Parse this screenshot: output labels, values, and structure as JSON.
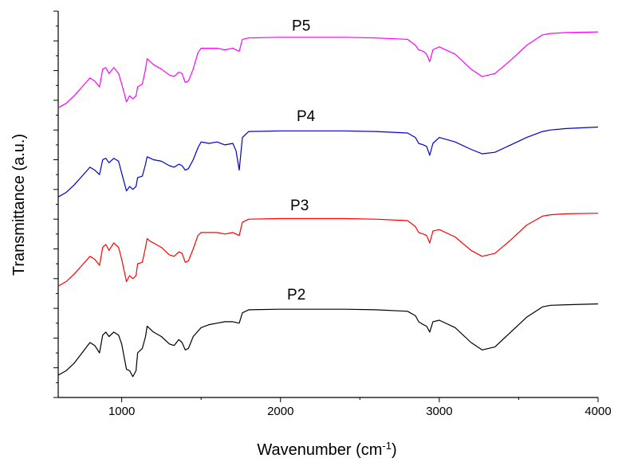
{
  "chart_data": {
    "type": "line",
    "title": "",
    "xlabel": "Wavenumber (cm",
    "xlabel_sup": "-1",
    "xlabel_close": ")",
    "ylabel": "Transmittance (a.u.)",
    "xlim": [
      600,
      4000
    ],
    "ylim": [
      0,
      13
    ],
    "x_ticks": [
      1000,
      2000,
      3000,
      4000
    ],
    "x_tick_labels": [
      "1000",
      "2000",
      "3000",
      "4000"
    ],
    "y_tick_labels_shown": false,
    "grid": false,
    "legend": "none",
    "series": [
      {
        "name": "P2",
        "color": "#000000",
        "x": [
          600,
          650,
          700,
          750,
          800,
          830,
          860,
          880,
          900,
          920,
          950,
          980,
          1000,
          1030,
          1050,
          1070,
          1090,
          1100,
          1130,
          1150,
          1160,
          1180,
          1200,
          1250,
          1300,
          1330,
          1360,
          1380,
          1400,
          1420,
          1450,
          1500,
          1550,
          1600,
          1650,
          1700,
          1740,
          1760,
          1800,
          2000,
          2200,
          2400,
          2600,
          2800,
          2850,
          2870,
          2900,
          2920,
          2940,
          2960,
          3000,
          3100,
          3200,
          3270,
          3350,
          3450,
          3550,
          3650,
          3700,
          3800,
          4000
        ],
        "y": [
          0.75,
          0.9,
          1.15,
          1.5,
          1.85,
          1.75,
          1.5,
          2.1,
          2.2,
          2.05,
          2.2,
          2.1,
          1.8,
          0.95,
          0.9,
          0.7,
          0.9,
          1.5,
          1.65,
          2.05,
          2.4,
          2.3,
          2.2,
          2.05,
          1.8,
          1.75,
          1.95,
          1.85,
          1.6,
          1.65,
          2.05,
          2.35,
          2.45,
          2.5,
          2.55,
          2.55,
          2.5,
          2.85,
          2.95,
          2.97,
          2.97,
          2.97,
          2.95,
          2.9,
          2.75,
          2.55,
          2.45,
          2.4,
          2.2,
          2.55,
          2.6,
          2.35,
          1.85,
          1.6,
          1.7,
          2.2,
          2.7,
          3.05,
          3.1,
          3.12,
          3.15
        ]
      },
      {
        "name": "P3",
        "color": "#ff0000",
        "x": [
          600,
          650,
          700,
          750,
          800,
          830,
          860,
          880,
          900,
          920,
          950,
          980,
          1000,
          1030,
          1050,
          1070,
          1090,
          1100,
          1130,
          1150,
          1160,
          1180,
          1200,
          1250,
          1300,
          1330,
          1360,
          1380,
          1400,
          1420,
          1450,
          1480,
          1500,
          1550,
          1600,
          1650,
          1700,
          1740,
          1760,
          1800,
          2000,
          2200,
          2400,
          2600,
          2800,
          2850,
          2870,
          2900,
          2920,
          2940,
          2960,
          3000,
          3100,
          3200,
          3270,
          3350,
          3450,
          3550,
          3650,
          3700,
          3800,
          4000
        ],
        "y": [
          3.75,
          3.9,
          4.15,
          4.45,
          4.75,
          4.65,
          4.45,
          5.05,
          5.15,
          4.95,
          5.2,
          5.05,
          4.65,
          3.9,
          4.1,
          4.0,
          4.1,
          4.5,
          4.55,
          5.05,
          5.35,
          5.25,
          5.2,
          5.05,
          4.8,
          4.75,
          4.9,
          4.85,
          4.55,
          4.6,
          5.0,
          5.45,
          5.55,
          5.55,
          5.55,
          5.5,
          5.55,
          5.45,
          5.9,
          6.0,
          6.02,
          6.02,
          6.02,
          6.0,
          5.95,
          5.75,
          5.55,
          5.5,
          5.45,
          5.2,
          5.6,
          5.65,
          5.4,
          4.95,
          4.75,
          4.85,
          5.3,
          5.8,
          6.1,
          6.15,
          6.18,
          6.2
        ]
      },
      {
        "name": "P4",
        "color": "#0000cc",
        "x": [
          600,
          650,
          700,
          750,
          800,
          830,
          860,
          880,
          900,
          920,
          950,
          980,
          1000,
          1030,
          1050,
          1070,
          1090,
          1100,
          1130,
          1150,
          1160,
          1180,
          1200,
          1250,
          1300,
          1330,
          1360,
          1380,
          1400,
          1420,
          1450,
          1480,
          1500,
          1550,
          1600,
          1650,
          1700,
          1720,
          1740,
          1760,
          1800,
          2000,
          2200,
          2400,
          2600,
          2800,
          2850,
          2870,
          2900,
          2920,
          2940,
          2960,
          3000,
          3100,
          3200,
          3270,
          3350,
          3450,
          3550,
          3650,
          3700,
          3800,
          4000
        ],
        "y": [
          6.75,
          6.9,
          7.15,
          7.45,
          7.75,
          7.65,
          7.5,
          8.0,
          8.05,
          7.9,
          8.05,
          7.95,
          7.55,
          6.95,
          7.1,
          7.0,
          7.1,
          7.4,
          7.45,
          7.85,
          8.1,
          8.05,
          8.0,
          7.95,
          7.8,
          7.75,
          7.85,
          7.8,
          7.65,
          7.7,
          8.0,
          8.4,
          8.6,
          8.55,
          8.6,
          8.5,
          8.55,
          8.3,
          7.65,
          8.75,
          8.95,
          8.97,
          8.97,
          8.97,
          8.95,
          8.9,
          8.75,
          8.55,
          8.5,
          8.45,
          8.15,
          8.55,
          8.75,
          8.6,
          8.35,
          8.2,
          8.25,
          8.5,
          8.75,
          8.95,
          9.0,
          9.05,
          9.1
        ]
      },
      {
        "name": "P5",
        "color": "#ff00ff",
        "x": [
          600,
          650,
          700,
          750,
          800,
          830,
          860,
          880,
          900,
          920,
          950,
          980,
          1000,
          1030,
          1050,
          1070,
          1090,
          1100,
          1130,
          1150,
          1160,
          1180,
          1200,
          1250,
          1300,
          1330,
          1360,
          1380,
          1400,
          1420,
          1450,
          1480,
          1500,
          1550,
          1600,
          1650,
          1700,
          1740,
          1760,
          1800,
          2000,
          2200,
          2400,
          2600,
          2800,
          2850,
          2870,
          2900,
          2920,
          2940,
          2960,
          3000,
          3100,
          3200,
          3270,
          3350,
          3450,
          3550,
          3650,
          3700,
          3800,
          4000
        ],
        "y": [
          9.75,
          9.9,
          10.15,
          10.45,
          10.75,
          10.65,
          10.45,
          11.05,
          11.1,
          10.9,
          11.1,
          10.9,
          10.55,
          9.95,
          10.15,
          10.05,
          10.15,
          10.45,
          10.55,
          11.05,
          11.4,
          11.3,
          11.2,
          11.05,
          10.85,
          10.8,
          10.95,
          10.9,
          10.6,
          10.65,
          11.05,
          11.6,
          11.75,
          11.75,
          11.75,
          11.7,
          11.75,
          11.65,
          12.05,
          12.1,
          12.12,
          12.12,
          12.12,
          12.1,
          12.05,
          11.85,
          11.7,
          11.65,
          11.55,
          11.3,
          11.7,
          11.8,
          11.55,
          11.05,
          10.8,
          10.9,
          11.35,
          11.85,
          12.2,
          12.25,
          12.28,
          12.3
        ]
      }
    ],
    "annotations": [
      {
        "text": "P5",
        "x": 2130,
        "y": 12.35
      },
      {
        "text": "P4",
        "x": 2160,
        "y": 9.3
      },
      {
        "text": "P3",
        "x": 2120,
        "y": 6.3
      },
      {
        "text": "P2",
        "x": 2100,
        "y": 3.3
      }
    ]
  }
}
